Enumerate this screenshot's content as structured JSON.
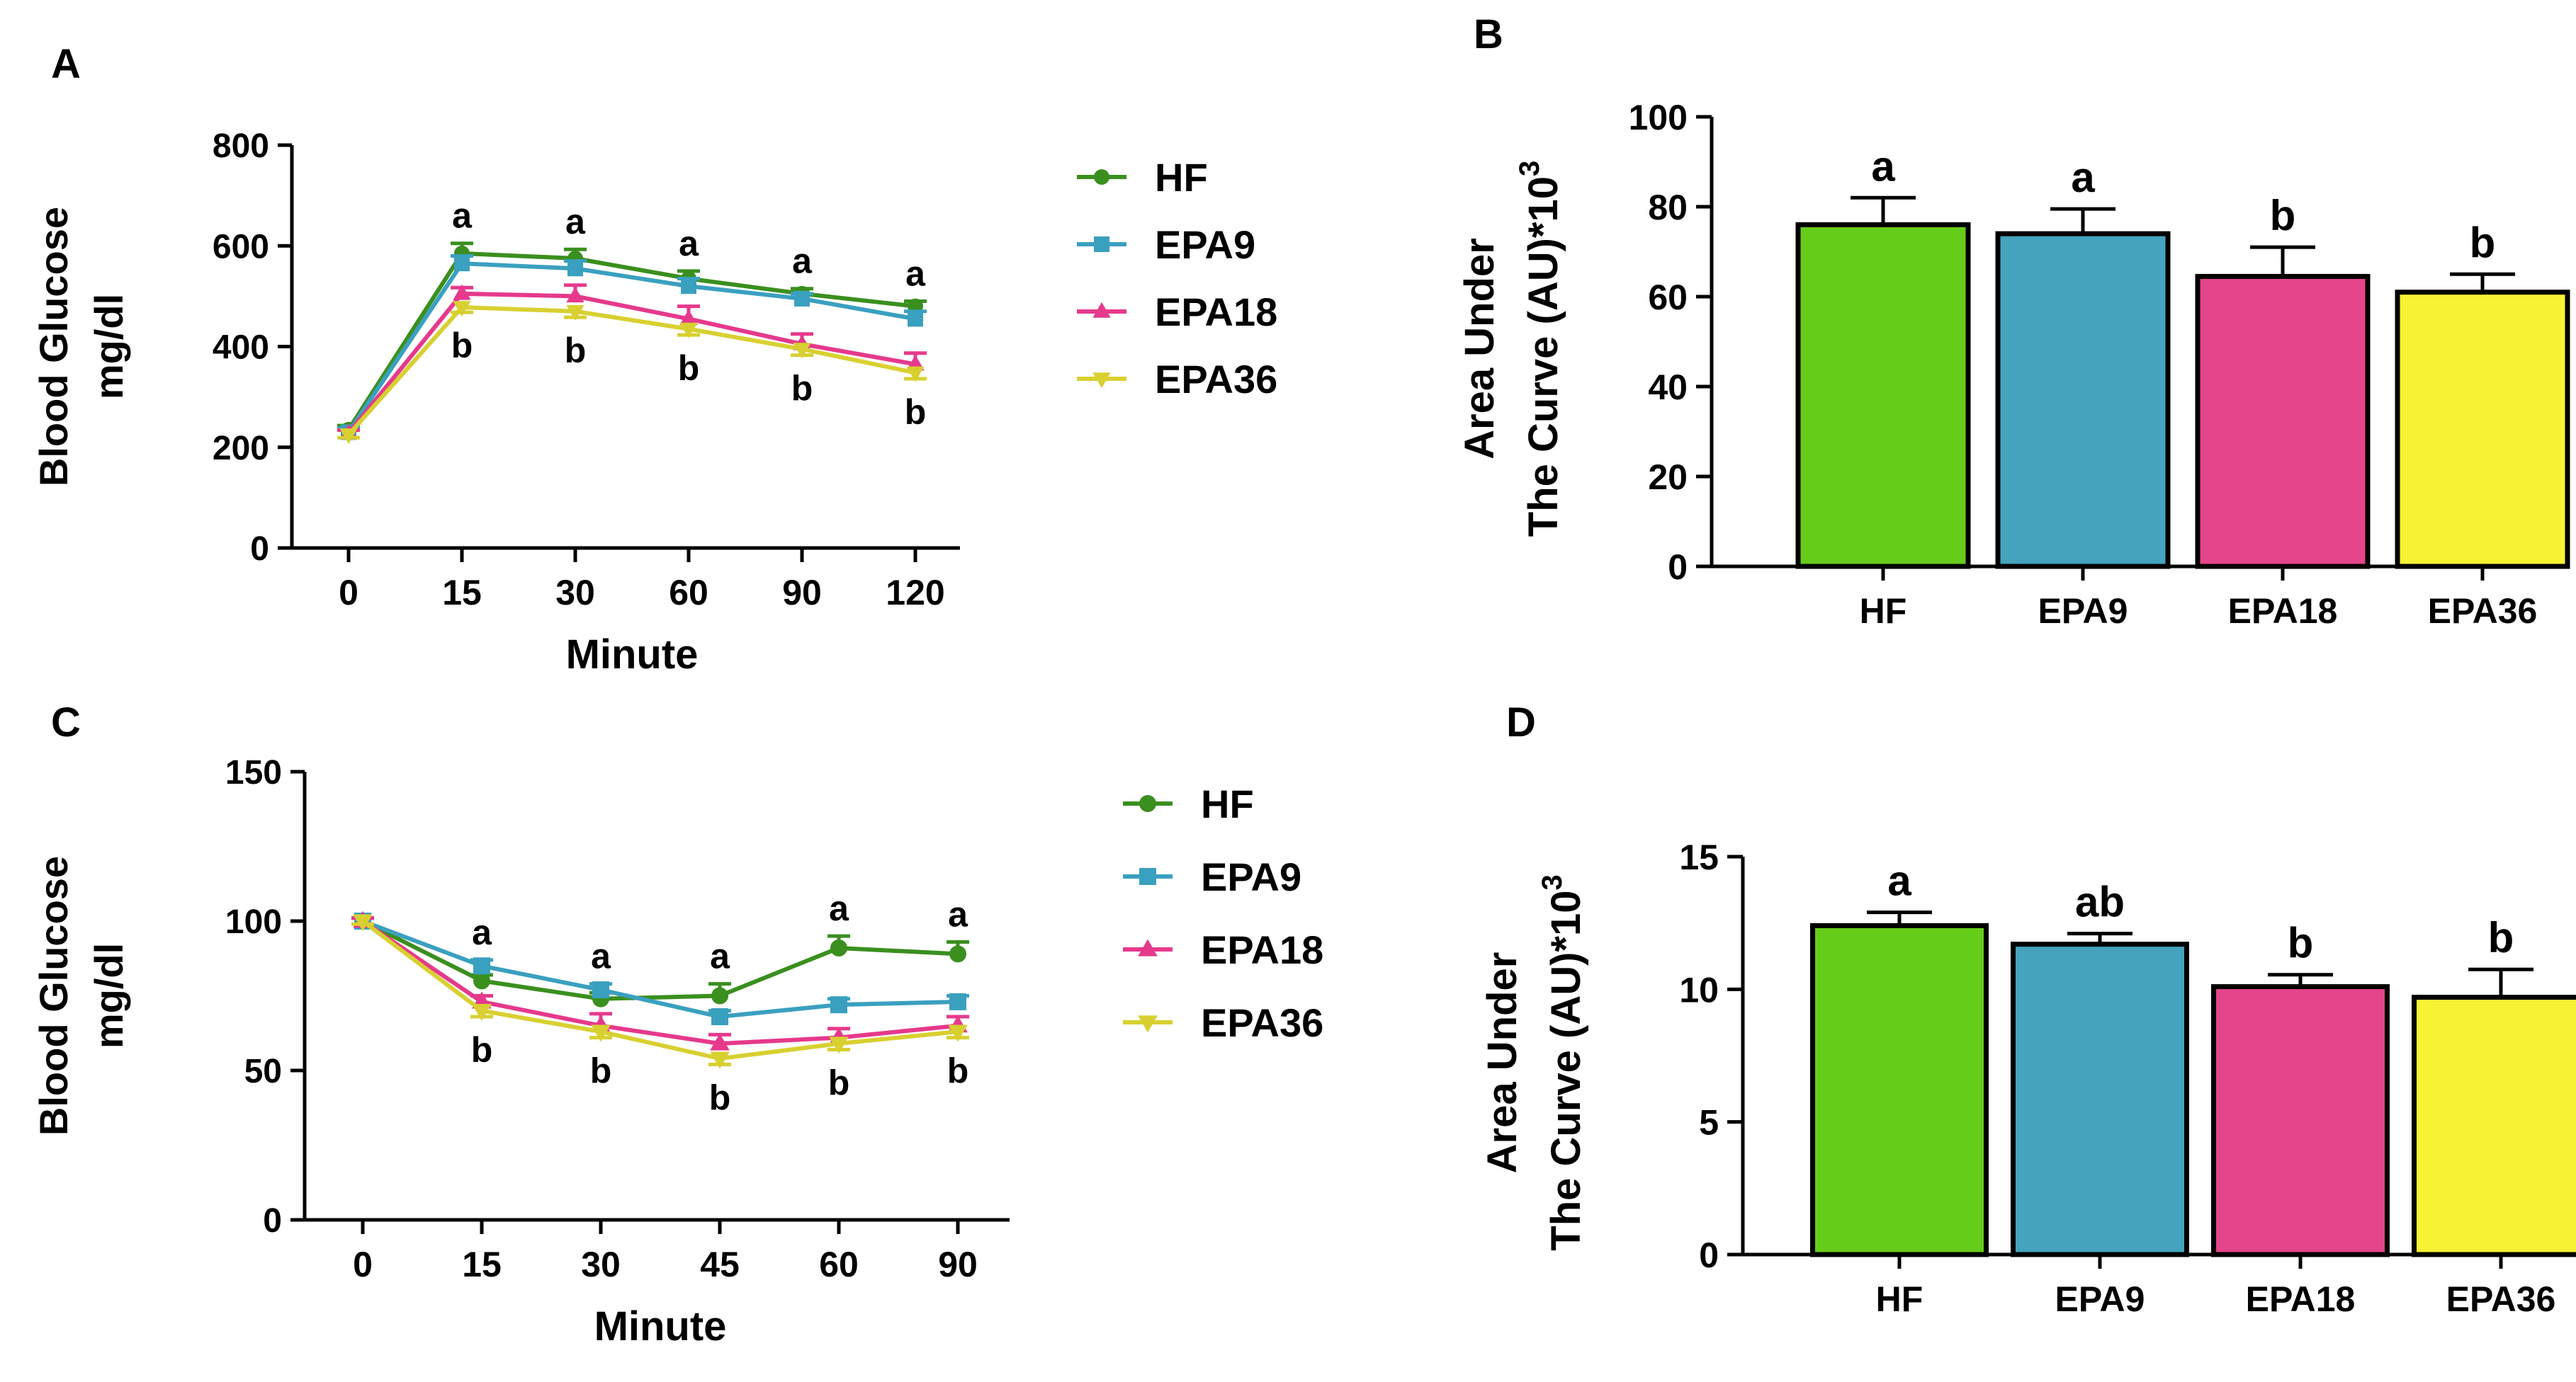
{
  "panels": [
    {
      "letter": "A",
      "chart_data": {
        "type": "line",
        "title": "",
        "xlabel": "Minute",
        "ylabel_lines": [
          "Blood Glucose",
          "mg/dl"
        ],
        "x": [
          0,
          15,
          30,
          60,
          90,
          120
        ],
        "xtick_labels": [
          "0",
          "15",
          "30",
          "60",
          "90",
          "120"
        ],
        "ylim": [
          0,
          800
        ],
        "yticks": [
          0,
          200,
          400,
          600,
          800
        ],
        "series": [
          {
            "name": "HF",
            "color": "#3a8f1e",
            "marker": "circle",
            "values": [
              235,
              585,
              575,
              535,
              505,
              480
            ],
            "errors": [
              8,
              20,
              18,
              15,
              10,
              10
            ]
          },
          {
            "name": "EPA9",
            "color": "#3aa0bf",
            "marker": "square",
            "values": [
              230,
              565,
              555,
              520,
              495,
              455
            ],
            "errors": [
              8,
              15,
              15,
              15,
              10,
              15
            ]
          },
          {
            "name": "EPA18",
            "color": "#e6398c",
            "marker": "triangle-up",
            "values": [
              228,
              505,
              500,
              455,
              405,
              365
            ],
            "errors": [
              6,
              12,
              22,
              25,
              20,
              22
            ]
          },
          {
            "name": "EPA36",
            "color": "#d8d030",
            "marker": "triangle-down",
            "values": [
              225,
              478,
              470,
              435,
              395,
              348
            ],
            "errors": [
              6,
              10,
              12,
              12,
              12,
              12
            ]
          }
        ],
        "annotations_upper": [
          "a",
          "a",
          "a",
          "a",
          "a"
        ],
        "annotations_lower": [
          "b",
          "b",
          "b",
          "b",
          "b"
        ]
      }
    },
    {
      "letter": "B",
      "chart_data": {
        "type": "bar",
        "title": "",
        "xlabel": "",
        "ylabel_lines": [
          "Area Under",
          "The Curve (AU)*10",
          "3"
        ],
        "categories": [
          "HF",
          "EPA9",
          "EPA18",
          "EPA36"
        ],
        "values": [
          76,
          74,
          64.5,
          61
        ],
        "errors": [
          6,
          5.5,
          6.5,
          4
        ],
        "colors": [
          "#66cc1a",
          "#45a3bd",
          "#e5458a",
          "#f7f233"
        ],
        "labels": [
          "a",
          "a",
          "b",
          "b"
        ],
        "ylim": [
          0,
          100
        ],
        "yticks": [
          0,
          20,
          40,
          60,
          80,
          100
        ]
      }
    },
    {
      "letter": "C",
      "chart_data": {
        "type": "line",
        "title": "",
        "xlabel": "Minute",
        "ylabel_lines": [
          "Blood Glucose",
          "mg/dl"
        ],
        "x": [
          0,
          15,
          30,
          45,
          60,
          90
        ],
        "xtick_labels": [
          "0",
          "15",
          "30",
          "45",
          "60",
          "90"
        ],
        "ylim": [
          0,
          150
        ],
        "yticks": [
          0,
          50,
          100,
          150
        ],
        "series": [
          {
            "name": "HF",
            "color": "#3a8f1e",
            "marker": "circle",
            "values": [
              100,
              80,
              74,
              75,
              91,
              89
            ],
            "errors": [
              1,
              2,
              2,
              4,
              4,
              4
            ]
          },
          {
            "name": "EPA9",
            "color": "#3aa0bf",
            "marker": "square",
            "values": [
              100,
              85,
              77,
              68,
              72,
              73
            ],
            "errors": [
              1,
              2,
              2,
              2,
              2,
              2
            ]
          },
          {
            "name": "EPA18",
            "color": "#e6398c",
            "marker": "triangle-up",
            "values": [
              100,
              73,
              65,
              59,
              61,
              65
            ],
            "errors": [
              1,
              2,
              4,
              3,
              3,
              3
            ]
          },
          {
            "name": "EPA36",
            "color": "#d8d030",
            "marker": "triangle-down",
            "values": [
              100,
              70,
              63,
              54,
              59,
              63
            ],
            "errors": [
              1,
              2,
              2,
              2,
              2,
              2
            ]
          }
        ],
        "annotations_upper": [
          "a",
          "a",
          "a",
          "a",
          "a"
        ],
        "annotations_lower": [
          "b",
          "b",
          "b",
          "b",
          "b"
        ]
      }
    },
    {
      "letter": "D",
      "chart_data": {
        "type": "bar",
        "title": "",
        "xlabel": "",
        "ylabel_lines": [
          "Area Under",
          "The Curve (AU)*10",
          "3"
        ],
        "categories": [
          "HF",
          "EPA9",
          "EPA18",
          "EPA36"
        ],
        "values": [
          12.4,
          11.7,
          10.1,
          9.7
        ],
        "errors": [
          0.5,
          0.4,
          0.45,
          1.05
        ],
        "colors": [
          "#66cc1a",
          "#45a3bd",
          "#e5458a",
          "#f7f233"
        ],
        "labels": [
          "a",
          "ab",
          "b",
          "b"
        ],
        "ylim": [
          0,
          15
        ],
        "yticks": [
          0,
          5,
          10,
          15
        ]
      }
    }
  ]
}
